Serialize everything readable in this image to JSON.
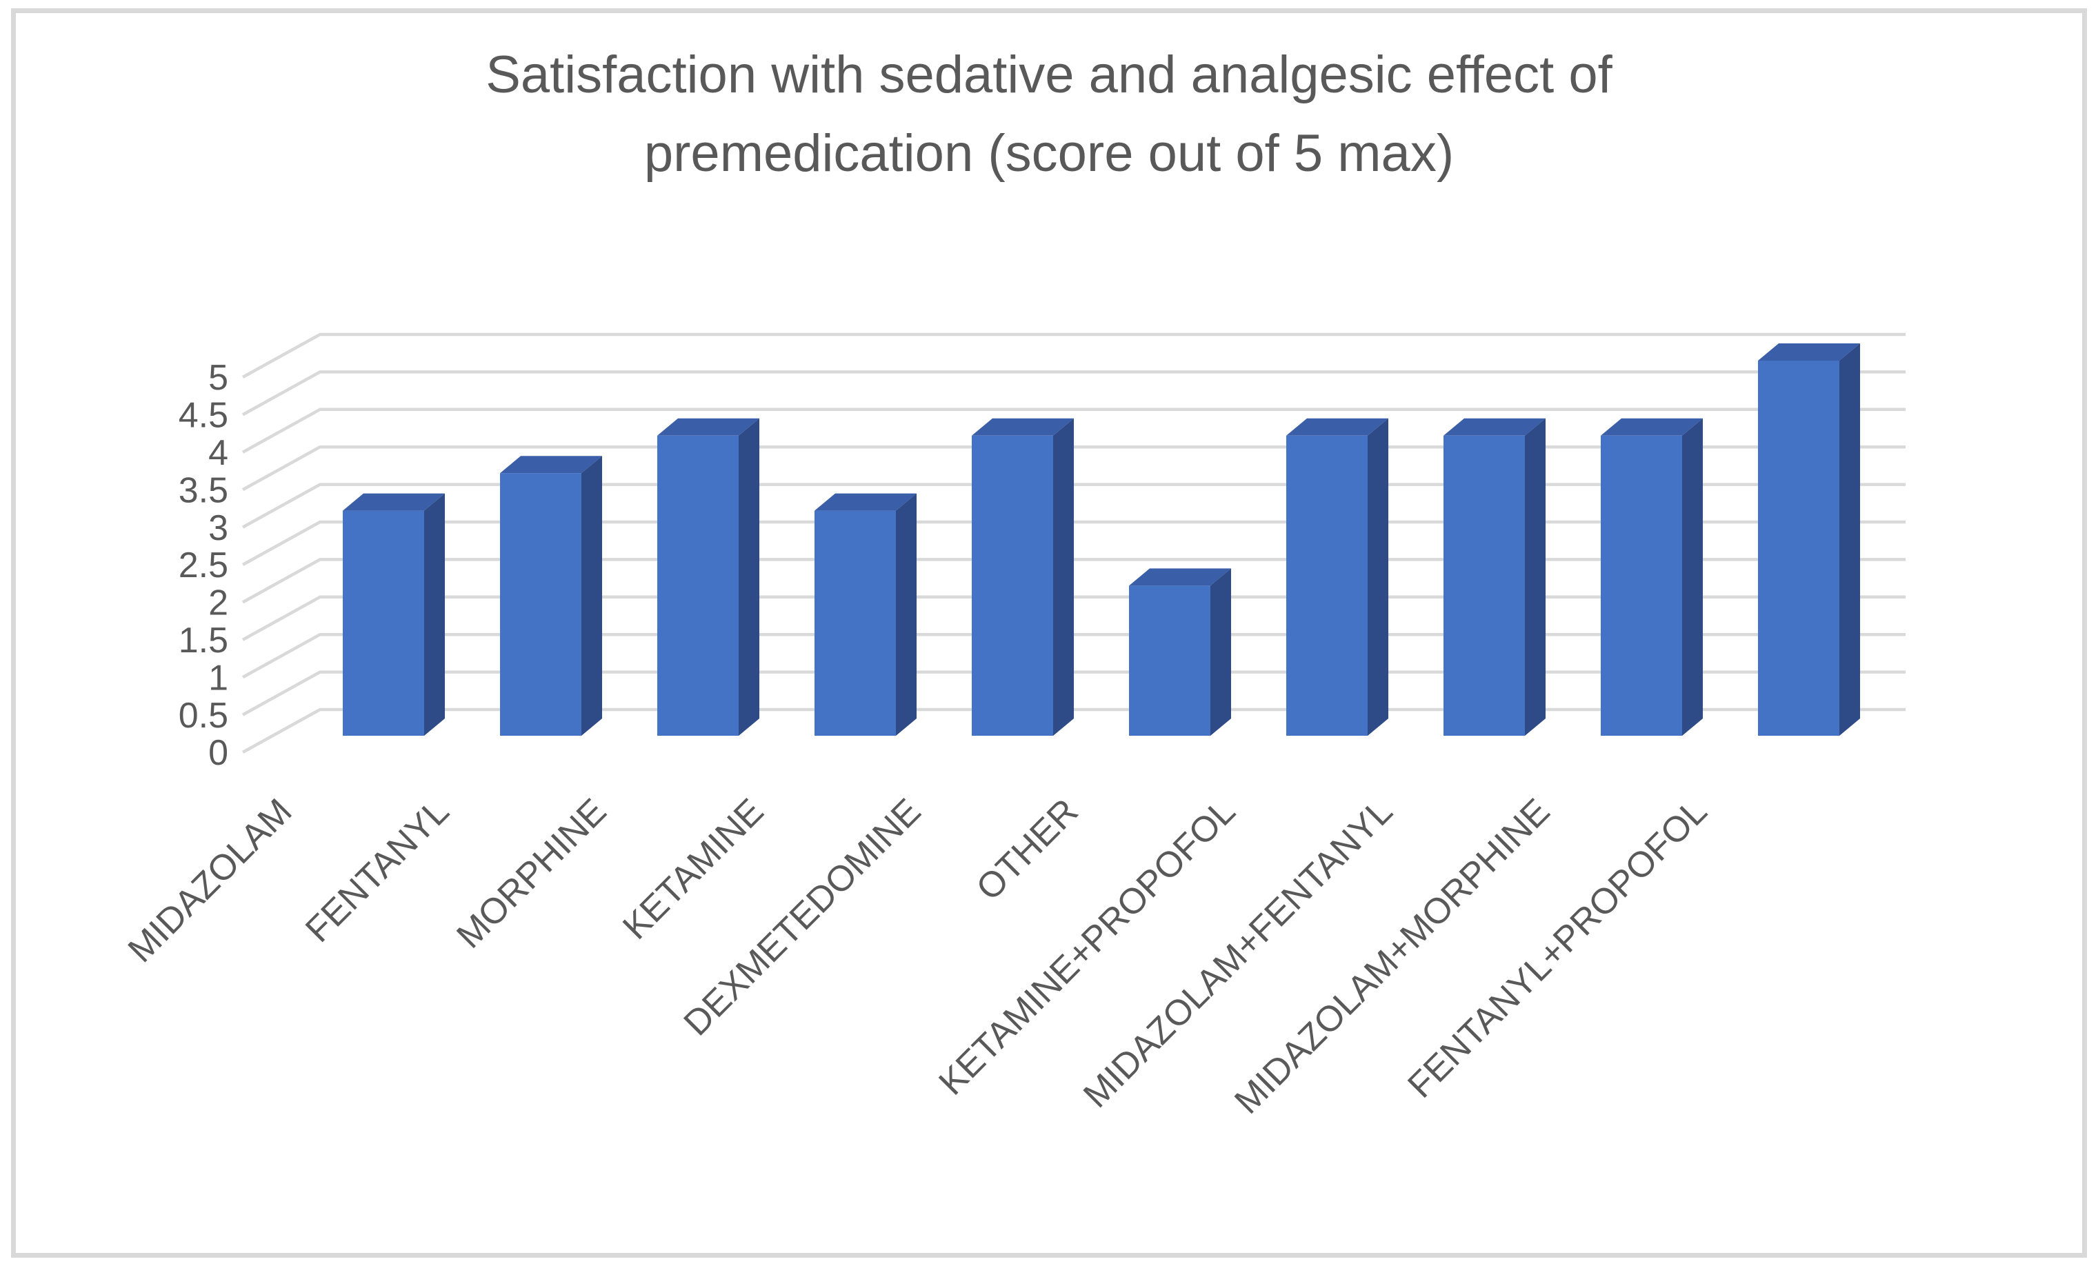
{
  "title": {
    "line1": "Satisfaction with sedative and analgesic effect of",
    "line2": "premedication (score out of 5 max)"
  },
  "chart_data": {
    "type": "bar",
    "projection": "3d",
    "title": "Satisfaction with sedative and analgesic effect of premedication (score out of 5 max)",
    "categories": [
      "MIDAZOLAM",
      "FENTANYL",
      "MORPHINE",
      "KETAMINE",
      "DEXMETEDOMINE",
      "OTHER",
      "KETAMINE+PROPOFOL",
      "MIDAZOLAM+FENTANYL",
      "MIDAZOLAM+MORPHINE",
      "FENTANYL+PROPOFOL"
    ],
    "values": [
      3,
      3.5,
      4,
      3,
      4,
      2,
      4,
      4,
      4,
      5
    ],
    "xlabel": "",
    "ylabel": "",
    "ylim": [
      0,
      5
    ],
    "ytick_step": 0.5,
    "yticks": [
      "0",
      "0.5",
      "1",
      "1.5",
      "2",
      "2.5",
      "3",
      "3.5",
      "4",
      "4.5",
      "5"
    ],
    "grid": true,
    "legend": false,
    "colors": {
      "bar_front": "#4472C4",
      "bar_top": "#3B5EA9",
      "bar_side": "#2E4B87",
      "gridline": "#D9D9D9",
      "text": "#595959",
      "background": "#FFFFFF",
      "frame_border": "#D9D9D9"
    }
  }
}
